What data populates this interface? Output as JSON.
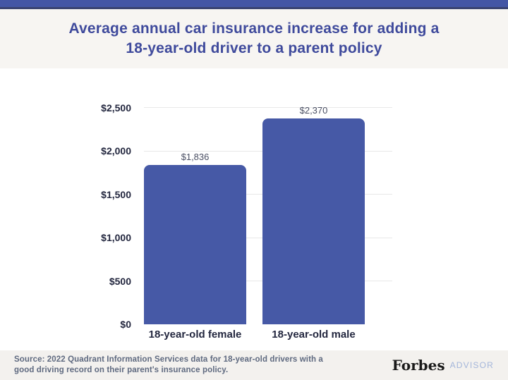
{
  "header": {
    "title_line1": "Average annual car insurance increase for adding a",
    "title_line2": "18-year-old driver to a parent policy"
  },
  "chart_data": {
    "type": "bar",
    "title": "Average annual car insurance increase for adding a 18-year-old driver to a parent policy",
    "categories": [
      "18-year-old female",
      "18-year-old male"
    ],
    "values": [
      1836,
      2370
    ],
    "value_labels": [
      "$1,836",
      "$2,370"
    ],
    "xlabel": "",
    "ylabel": "",
    "ylim": [
      0,
      2500
    ],
    "yticks": {
      "values": [
        0,
        500,
        1000,
        1500,
        2000,
        2500
      ],
      "labels": [
        "$0",
        "$500",
        "$1,000",
        "$1,500",
        "$2,000",
        "$2,500"
      ]
    },
    "grid": true,
    "legend": false,
    "bar_color": "#4659a6"
  },
  "footer": {
    "source_line1": "Source: 2022 Quadrant Information Services data for 18-year-old drivers with a",
    "source_line2": "good driving record on their parent's insurance policy.",
    "logo_primary": "Forbes",
    "logo_secondary": "ADVISOR"
  },
  "colors": {
    "accent_bar": "#4456a5",
    "accent_bar_edge": "#3b4471",
    "title_text": "#3f4a9c",
    "bar_fill": "#4659a6",
    "axis_text": "#23273f",
    "value_text": "#4a4f63",
    "source_text": "#5f6a80",
    "advisor_text": "#a3b5da",
    "header_bg": "#f7f5f2",
    "footer_bg": "#f3f1ee",
    "gridline": "#e8e8e8"
  }
}
